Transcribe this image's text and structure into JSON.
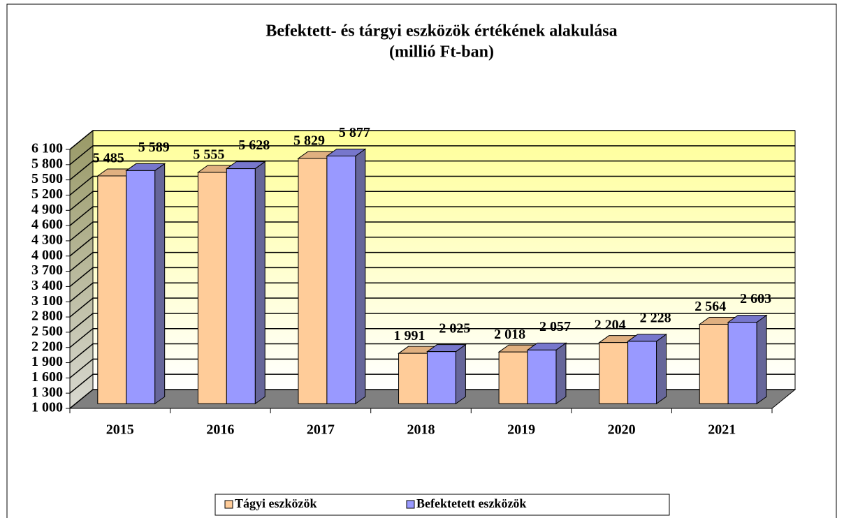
{
  "chart_data": {
    "type": "bar3d",
    "title": "Befektett- és tárgyi eszközök értékének alakulása",
    "subtitle": "(millió Ft-ban)",
    "categories": [
      "2015",
      "2016",
      "2017",
      "2018",
      "2019",
      "2020",
      "2021"
    ],
    "series": [
      {
        "name": "Tágyi eszközök",
        "color": "#ffcc99",
        "values": [
          5485,
          5555,
          5829,
          1991,
          2018,
          2204,
          2564
        ],
        "value_labels": [
          "5 485",
          "5 555",
          "5 829",
          "1 991",
          "2 018",
          "2 204",
          "2 564"
        ]
      },
      {
        "name": "Befektetett eszközök",
        "color": "#9999ff",
        "values": [
          5589,
          5628,
          5877,
          2025,
          2057,
          2228,
          2603
        ],
        "value_labels": [
          "5 589",
          "5 628",
          "5 877",
          "2 025",
          "2 057",
          "2 228",
          "2 603"
        ]
      }
    ],
    "ylim": [
      1000,
      6100
    ],
    "yticks": [
      {
        "value": 1000,
        "label": "1 000"
      },
      {
        "value": 1300,
        "label": "1 300"
      },
      {
        "value": 1600,
        "label": "1 600"
      },
      {
        "value": 1900,
        "label": "1 900"
      },
      {
        "value": 2200,
        "label": "2 200"
      },
      {
        "value": 2500,
        "label": "2 500"
      },
      {
        "value": 2800,
        "label": "2 800"
      },
      {
        "value": 3100,
        "label": "3 100"
      },
      {
        "value": 3400,
        "label": "3 400"
      },
      {
        "value": 3700,
        "label": "3 700"
      },
      {
        "value": 4000,
        "label": "4 000"
      },
      {
        "value": 4300,
        "label": "4 300"
      },
      {
        "value": 4600,
        "label": "4 600"
      },
      {
        "value": 4900,
        "label": "4 900"
      },
      {
        "value": 5200,
        "label": "5 200"
      },
      {
        "value": 5500,
        "label": "5 500"
      },
      {
        "value": 5800,
        "label": "5 800"
      },
      {
        "value": 6100,
        "label": "6 100"
      }
    ],
    "grid": true,
    "legend": "bottom"
  }
}
